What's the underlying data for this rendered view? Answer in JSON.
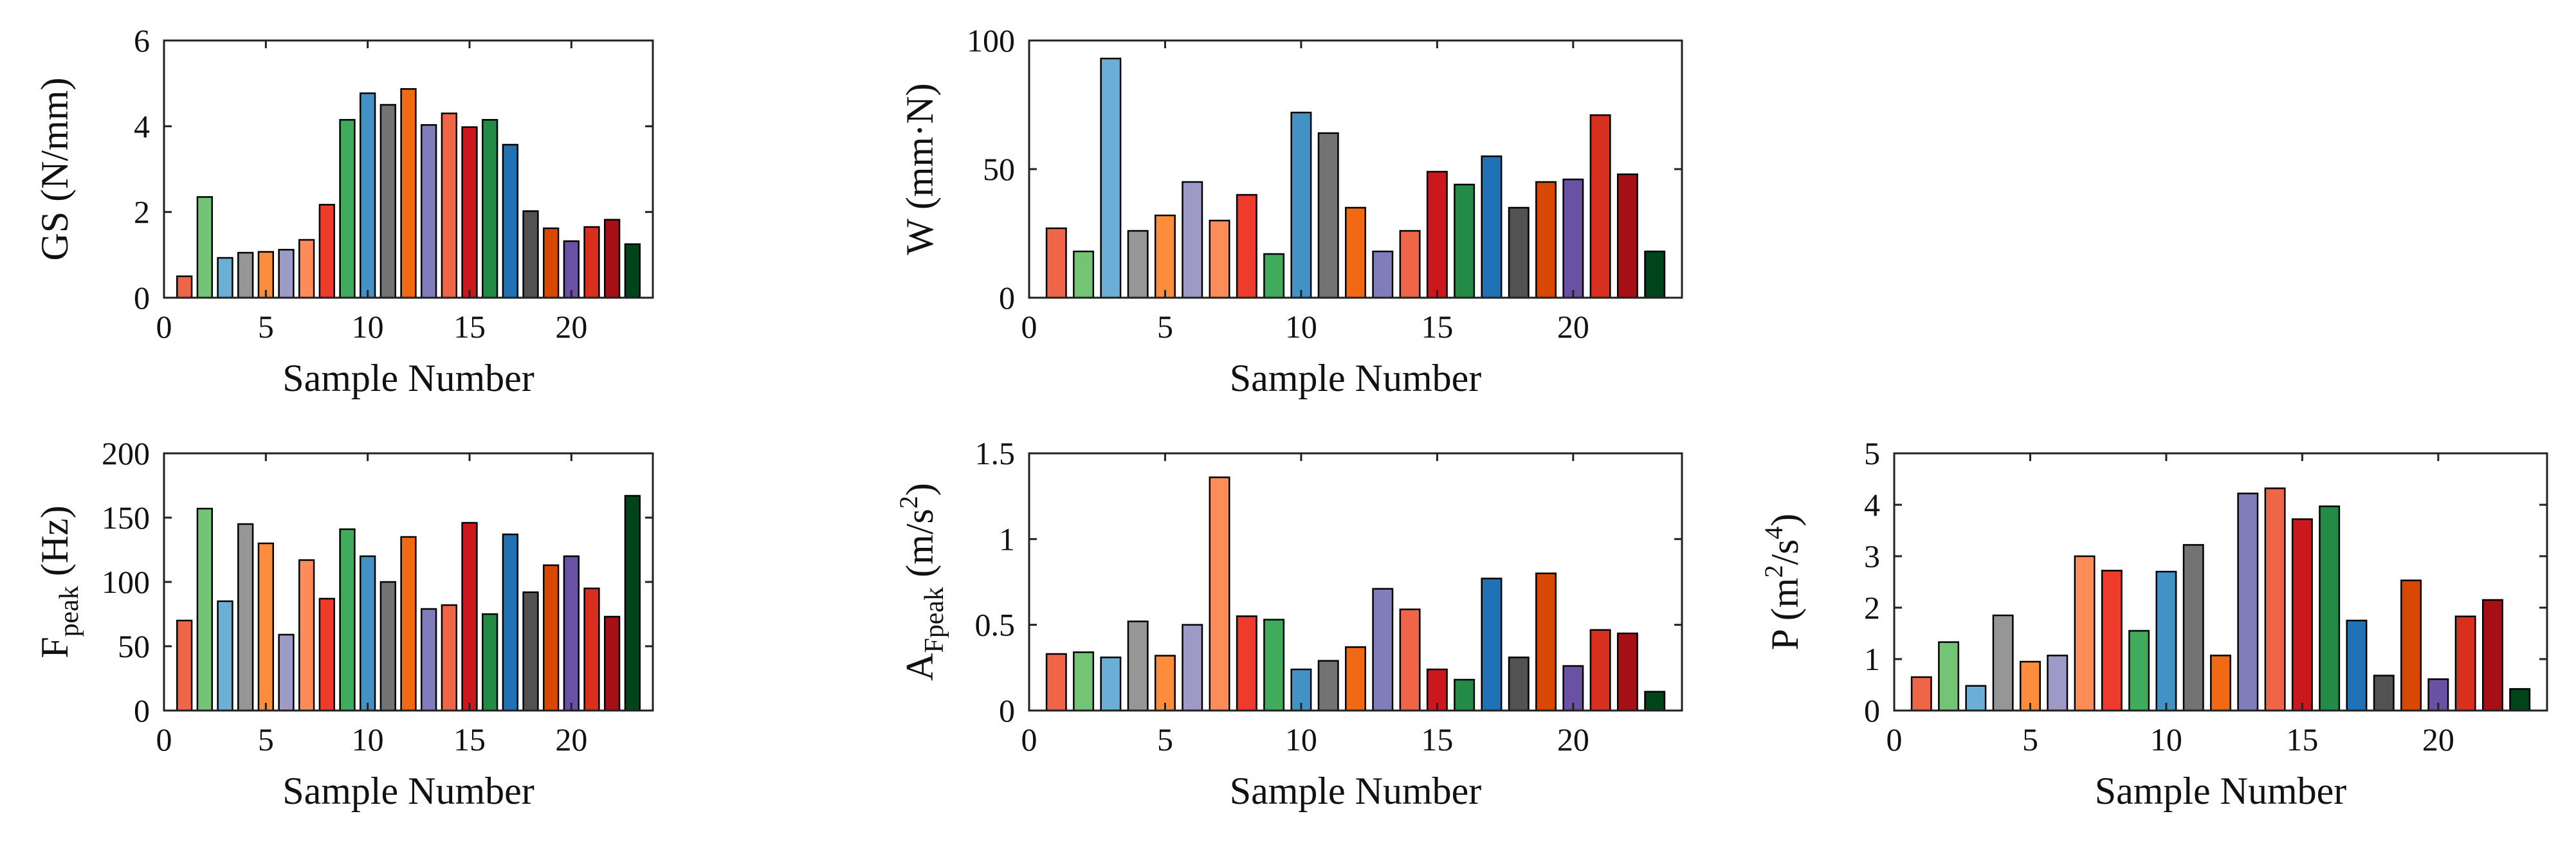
{
  "colors": [
    "#ef6548",
    "#74c476",
    "#6baed6",
    "#969696",
    "#fd8d3c",
    "#9e9ac8",
    "#fc8d59",
    "#ef3b2c",
    "#41ab5d",
    "#4292c6",
    "#737373",
    "#f16913",
    "#807dba",
    "#ef6548",
    "#cb181d",
    "#238b45",
    "#2171b5",
    "#525252",
    "#d94801",
    "#6a51a3",
    "#d7301f",
    "#a50f15",
    "#00441b"
  ],
  "chart_data": [
    {
      "id": "gs",
      "type": "bar",
      "ylabel_main": "GS (N/mm)",
      "xlabel": "Sample Number",
      "xlim": [
        0,
        24
      ],
      "ylim": [
        0,
        6
      ],
      "xticks": [
        "0",
        "5",
        "10",
        "15",
        "20"
      ],
      "yticks": [
        "0",
        "2",
        "4",
        "6"
      ],
      "x": [
        1,
        2,
        3,
        4,
        5,
        6,
        7,
        8,
        9,
        10,
        11,
        12,
        13,
        14,
        15,
        16,
        17,
        18,
        19,
        20,
        21,
        22,
        23
      ],
      "values": [
        0.5,
        2.35,
        0.93,
        1.05,
        1.07,
        1.12,
        1.35,
        2.17,
        4.15,
        4.77,
        4.5,
        4.87,
        4.03,
        4.3,
        3.98,
        4.15,
        3.57,
        2.02,
        1.62,
        1.32,
        1.65,
        1.82,
        1.25
      ]
    },
    {
      "id": "w",
      "type": "bar",
      "ylabel_main": "W (mm·N)",
      "xlabel": "Sample Number",
      "xlim": [
        0,
        24
      ],
      "ylim": [
        0,
        100
      ],
      "xticks": [
        "0",
        "5",
        "10",
        "15",
        "20"
      ],
      "yticks": [
        "0",
        "50",
        "100"
      ],
      "x": [
        1,
        2,
        3,
        4,
        5,
        6,
        7,
        8,
        9,
        10,
        11,
        12,
        13,
        14,
        15,
        16,
        17,
        18,
        19,
        20,
        21,
        22,
        23
      ],
      "values": [
        27,
        18,
        93,
        26,
        32,
        45,
        30,
        40,
        17,
        72,
        64,
        35,
        18,
        26,
        49,
        44,
        55,
        35,
        45,
        46,
        71,
        48,
        18
      ]
    },
    {
      "id": "fpeak",
      "type": "bar",
      "ylabel_main": "F",
      "ylabel_sub": "peak",
      "ylabel_rest": " (Hz)",
      "xlabel": "Sample Number",
      "xlim": [
        0,
        24
      ],
      "ylim": [
        0,
        200
      ],
      "xticks": [
        "0",
        "5",
        "10",
        "15",
        "20"
      ],
      "yticks": [
        "0",
        "50",
        "100",
        "150",
        "200"
      ],
      "x": [
        1,
        2,
        3,
        4,
        5,
        6,
        7,
        8,
        9,
        10,
        11,
        12,
        13,
        14,
        15,
        16,
        17,
        18,
        19,
        20,
        21,
        22,
        23
      ],
      "values": [
        70,
        157,
        85,
        145,
        130,
        59,
        117,
        87,
        141,
        120,
        100,
        135,
        79,
        82,
        146,
        75,
        137,
        92,
        113,
        120,
        95,
        73,
        167
      ]
    },
    {
      "id": "afpeak",
      "type": "bar",
      "ylabel_main": "A",
      "ylabel_sub": "Fpeak",
      "ylabel_rest": " (m/s",
      "ylabel_sup": "2",
      "ylabel_end": ")",
      "xlabel": "Sample Number",
      "xlim": [
        0,
        24
      ],
      "ylim": [
        0,
        1.5
      ],
      "xticks": [
        "0",
        "5",
        "10",
        "15",
        "20"
      ],
      "yticks": [
        "0",
        "0.5",
        "1",
        "1.5"
      ],
      "x": [
        1,
        2,
        3,
        4,
        5,
        6,
        7,
        8,
        9,
        10,
        11,
        12,
        13,
        14,
        15,
        16,
        17,
        18,
        19,
        20,
        21,
        22,
        23
      ],
      "values": [
        0.33,
        0.34,
        0.31,
        0.52,
        0.32,
        0.5,
        1.36,
        0.55,
        0.53,
        0.24,
        0.29,
        0.37,
        0.71,
        0.59,
        0.24,
        0.18,
        0.77,
        0.31,
        0.8,
        0.26,
        0.47,
        0.45,
        0.11
      ]
    },
    {
      "id": "p",
      "type": "bar",
      "ylabel_main": "P (m",
      "ylabel_sup": "2",
      "ylabel_rest": "/s",
      "ylabel_sup2": "4",
      "ylabel_end": ")",
      "xlabel": "Sample Number",
      "xlim": [
        0,
        24
      ],
      "ylim": [
        0,
        5
      ],
      "xticks": [
        "0",
        "5",
        "10",
        "15",
        "20"
      ],
      "yticks": [
        "0",
        "1",
        "2",
        "3",
        "4",
        "5"
      ],
      "x": [
        1,
        2,
        3,
        4,
        5,
        6,
        7,
        8,
        9,
        10,
        11,
        12,
        13,
        14,
        15,
        16,
        17,
        18,
        19,
        20,
        21,
        22,
        23
      ],
      "values": [
        0.65,
        1.33,
        0.48,
        1.85,
        0.95,
        1.07,
        3.0,
        2.72,
        1.55,
        2.7,
        3.22,
        1.07,
        4.22,
        4.32,
        3.72,
        3.97,
        1.75,
        0.68,
        2.53,
        0.61,
        1.83,
        2.15,
        0.42
      ]
    }
  ]
}
